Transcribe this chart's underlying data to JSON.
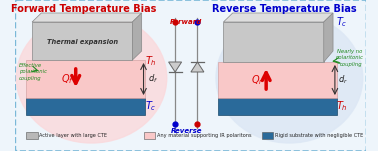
{
  "bg_color": "#eef5fb",
  "border_color": "#7ab8d8",
  "left_title": "Forward Temperature Bias",
  "right_title": "Reverse Temperature Bias",
  "left_glow_color": "#fadadd",
  "right_glow_color": "#dde8f5",
  "gray_top": "#c8c8c8",
  "gray_top_light": "#dedede",
  "gray_top_dark": "#adadad",
  "pink_mid": "#f9c8c8",
  "teal_bot": "#2a6a9a",
  "forward_label": "Forward",
  "reverse_label": "Reverse",
  "legend_items": [
    {
      "label": "Active layer with large CTE",
      "color": "#b8b8b8"
    },
    {
      "label": "Any material supporting IR polaritons",
      "color": "#f9c8c8"
    },
    {
      "label": "Rigid substrate with negligible CTE",
      "color": "#2a6a9a"
    }
  ]
}
